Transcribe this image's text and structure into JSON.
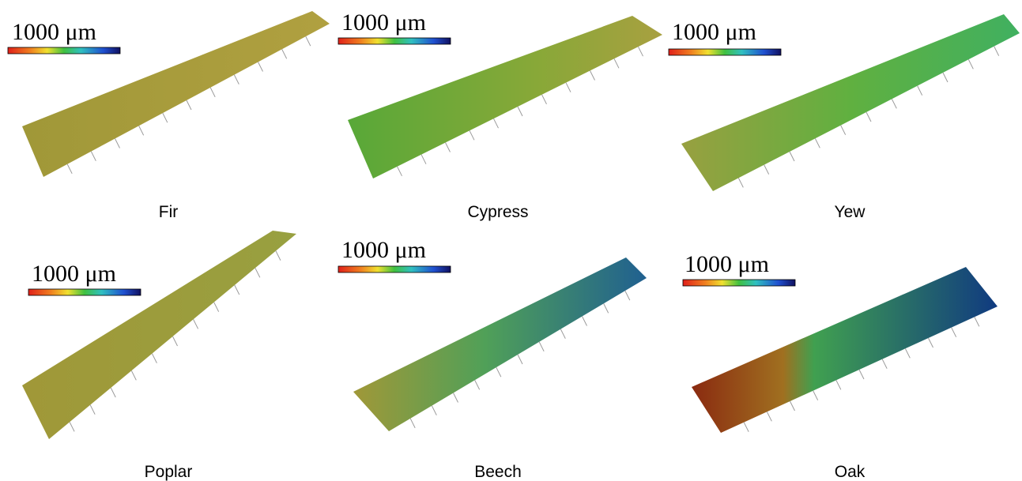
{
  "panels": [
    {
      "scale_label": "1000 μm",
      "caption": "Fir"
    },
    {
      "scale_label": "1000 μm",
      "caption": "Cypress"
    },
    {
      "scale_label": "1000 μm",
      "caption": "Yew"
    },
    {
      "scale_label": "1000 μm",
      "caption": "Poplar"
    },
    {
      "scale_label": "1000 μm",
      "caption": "Beech"
    },
    {
      "scale_label": "1000 μm",
      "caption": "Oak"
    }
  ]
}
